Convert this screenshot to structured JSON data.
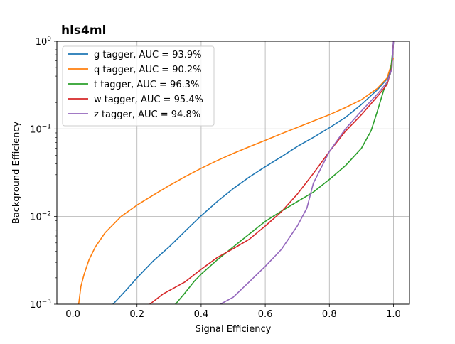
{
  "chart_data": {
    "type": "line",
    "title": "hls4ml",
    "xlabel": "Signal Efficiency",
    "ylabel": "Background Efficiency",
    "xlim": [
      -0.05,
      1.05
    ],
    "ylim": [
      0.001,
      1
    ],
    "yscale": "log",
    "grid": true,
    "legend_position": "top-left",
    "x_ticks": [
      "0.0",
      "0.2",
      "0.4",
      "0.6",
      "0.8",
      "1.0"
    ],
    "y_ticks": [
      {
        "base": "10",
        "exp": "−3"
      },
      {
        "base": "10",
        "exp": "−2"
      },
      {
        "base": "10",
        "exp": "−1"
      },
      {
        "base": "10",
        "exp": "0"
      }
    ],
    "series": [
      {
        "name": "g tagger, AUC = 93.9%",
        "color": "#1f77b4",
        "points": [
          [
            0.125,
            0.001
          ],
          [
            0.15,
            0.00125
          ],
          [
            0.17,
            0.0015
          ],
          [
            0.2,
            0.002
          ],
          [
            0.25,
            0.0031
          ],
          [
            0.3,
            0.0045
          ],
          [
            0.35,
            0.0068
          ],
          [
            0.4,
            0.0102
          ],
          [
            0.45,
            0.0148
          ],
          [
            0.5,
            0.0208
          ],
          [
            0.55,
            0.0282
          ],
          [
            0.6,
            0.037
          ],
          [
            0.65,
            0.048
          ],
          [
            0.7,
            0.063
          ],
          [
            0.75,
            0.08
          ],
          [
            0.8,
            0.103
          ],
          [
            0.85,
            0.135
          ],
          [
            0.9,
            0.19
          ],
          [
            0.95,
            0.28
          ],
          [
            0.98,
            0.37
          ],
          [
            0.995,
            0.52
          ],
          [
            1.0,
            1.0
          ]
        ]
      },
      {
        "name": "q tagger, AUC = 90.2%",
        "color": "#ff7f0e",
        "points": [
          [
            0.018,
            0.001
          ],
          [
            0.025,
            0.0016
          ],
          [
            0.035,
            0.0022
          ],
          [
            0.05,
            0.0032
          ],
          [
            0.07,
            0.0045
          ],
          [
            0.1,
            0.0065
          ],
          [
            0.15,
            0.01
          ],
          [
            0.2,
            0.0135
          ],
          [
            0.25,
            0.0175
          ],
          [
            0.3,
            0.0225
          ],
          [
            0.35,
            0.0285
          ],
          [
            0.4,
            0.0355
          ],
          [
            0.45,
            0.0435
          ],
          [
            0.5,
            0.0525
          ],
          [
            0.55,
            0.0625
          ],
          [
            0.6,
            0.074
          ],
          [
            0.65,
            0.088
          ],
          [
            0.7,
            0.104
          ],
          [
            0.75,
            0.123
          ],
          [
            0.8,
            0.145
          ],
          [
            0.85,
            0.175
          ],
          [
            0.9,
            0.215
          ],
          [
            0.95,
            0.29
          ],
          [
            0.98,
            0.38
          ],
          [
            1.0,
            0.65
          ]
        ]
      },
      {
        "name": "t tagger, AUC = 96.3%",
        "color": "#2ca02c",
        "points": [
          [
            0.32,
            0.001
          ],
          [
            0.35,
            0.00135
          ],
          [
            0.38,
            0.00185
          ],
          [
            0.4,
            0.0022
          ],
          [
            0.45,
            0.0032
          ],
          [
            0.5,
            0.0045
          ],
          [
            0.55,
            0.0063
          ],
          [
            0.6,
            0.0088
          ],
          [
            0.65,
            0.0115
          ],
          [
            0.7,
            0.0148
          ],
          [
            0.75,
            0.019
          ],
          [
            0.8,
            0.0265
          ],
          [
            0.85,
            0.038
          ],
          [
            0.9,
            0.06
          ],
          [
            0.93,
            0.095
          ],
          [
            0.95,
            0.16
          ],
          [
            0.97,
            0.28
          ],
          [
            0.99,
            0.42
          ],
          [
            1.0,
            0.95
          ]
        ]
      },
      {
        "name": "w tagger, AUC = 95.4%",
        "color": "#d62728",
        "points": [
          [
            0.24,
            0.001
          ],
          [
            0.28,
            0.0013
          ],
          [
            0.35,
            0.0018
          ],
          [
            0.4,
            0.0025
          ],
          [
            0.45,
            0.0034
          ],
          [
            0.5,
            0.0043
          ],
          [
            0.55,
            0.0055
          ],
          [
            0.6,
            0.0078
          ],
          [
            0.65,
            0.0113
          ],
          [
            0.7,
            0.018
          ],
          [
            0.75,
            0.031
          ],
          [
            0.8,
            0.055
          ],
          [
            0.85,
            0.094
          ],
          [
            0.9,
            0.145
          ],
          [
            0.95,
            0.235
          ],
          [
            0.98,
            0.32
          ],
          [
            0.995,
            0.5
          ],
          [
            1.0,
            1.0
          ]
        ]
      },
      {
        "name": "z tagger, AUC = 94.8%",
        "color": "#9467bd",
        "points": [
          [
            0.46,
            0.001
          ],
          [
            0.5,
            0.0012
          ],
          [
            0.55,
            0.0018
          ],
          [
            0.6,
            0.0027
          ],
          [
            0.65,
            0.0042
          ],
          [
            0.7,
            0.0078
          ],
          [
            0.73,
            0.0125
          ],
          [
            0.75,
            0.024
          ],
          [
            0.8,
            0.055
          ],
          [
            0.85,
            0.1
          ],
          [
            0.9,
            0.16
          ],
          [
            0.95,
            0.25
          ],
          [
            0.98,
            0.34
          ],
          [
            0.995,
            0.48
          ],
          [
            1.0,
            1.0
          ]
        ]
      }
    ]
  }
}
